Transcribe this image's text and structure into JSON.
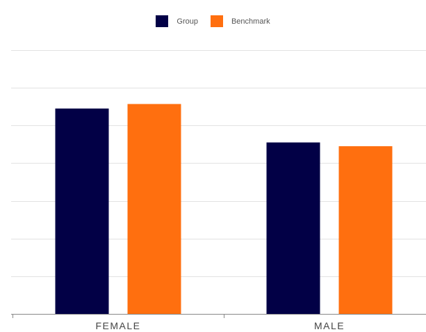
{
  "chart_data": {
    "type": "bar",
    "categories": [
      "FEMALE",
      "MALE"
    ],
    "series": [
      {
        "name": "Group",
        "values": [
          54.5,
          45.5
        ],
        "color": "#020046"
      },
      {
        "name": "Benchmark",
        "values": [
          55.7,
          44.5
        ],
        "color": "#ff6f0f"
      }
    ],
    "ylim": [
      0,
      70
    ],
    "grid": true,
    "legend_position": "top-center",
    "title": "",
    "xlabel": "",
    "ylabel": ""
  }
}
